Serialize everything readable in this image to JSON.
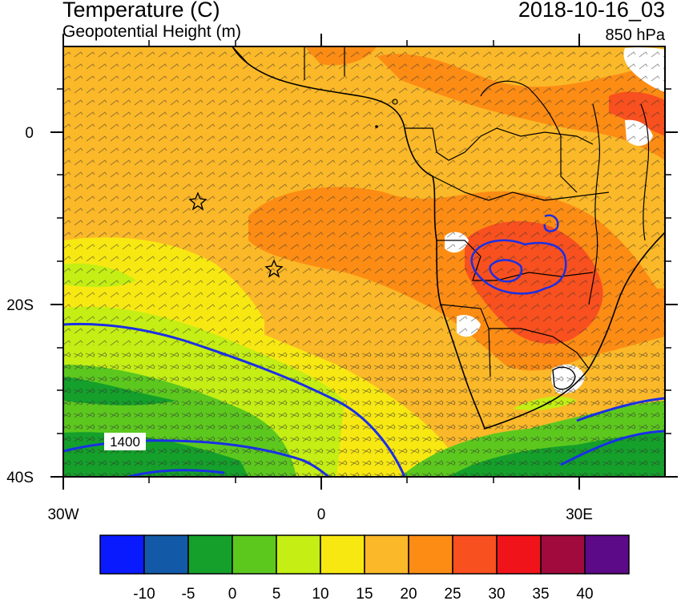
{
  "header": {
    "title": "Temperature (C)",
    "subtitle": "Geopotential Height (m)",
    "valid_time": "2018-10-16_03",
    "level": "850 hPa"
  },
  "map": {
    "lon_range": [
      -30,
      40
    ],
    "lat_range": [
      -40,
      10
    ],
    "x_ticks": [
      {
        "lon": -30,
        "label": "30W"
      },
      {
        "lon": 0,
        "label": "0"
      },
      {
        "lon": 30,
        "label": "30E"
      }
    ],
    "y_ticks": [
      {
        "lat": 0,
        "label": "0"
      },
      {
        "lat": -20,
        "label": "20S"
      },
      {
        "lat": -40,
        "label": "40S"
      }
    ],
    "contour_label": "1400",
    "contour_color": "#1a2fe6"
  },
  "colorbar": {
    "colors": [
      "#0a1aff",
      "#125aa8",
      "#14a02a",
      "#5cc81e",
      "#c4ee14",
      "#f8e812",
      "#fbb828",
      "#fc8c14",
      "#f8501e",
      "#f0141a",
      "#a00a3c",
      "#5c0a88"
    ],
    "labels": [
      "-10",
      "-5",
      "0",
      "5",
      "10",
      "15",
      "20",
      "25",
      "30",
      "35",
      "40"
    ]
  }
}
